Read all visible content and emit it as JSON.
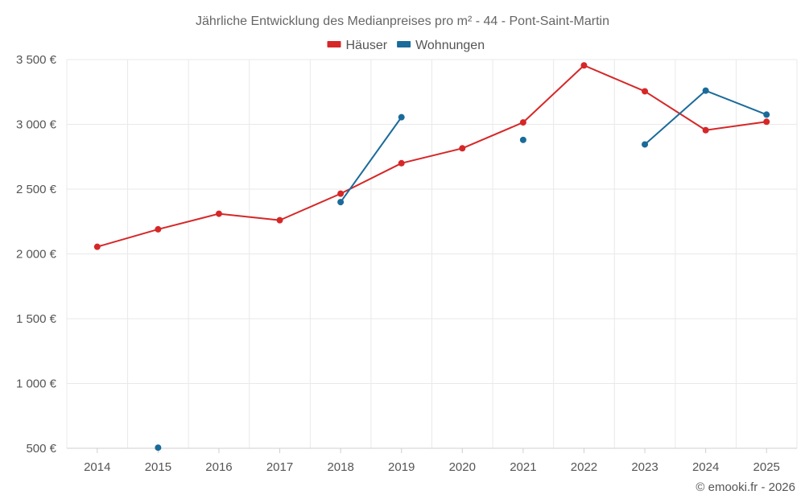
{
  "chart_data": {
    "type": "line",
    "title": "Jährliche Entwicklung des Medianpreises pro m² - 44 - Pont-Saint-Martin",
    "categories": [
      "2014",
      "2015",
      "2016",
      "2017",
      "2018",
      "2019",
      "2020",
      "2021",
      "2022",
      "2023",
      "2024",
      "2025"
    ],
    "y_ticks": [
      500,
      1000,
      1500,
      2000,
      2500,
      3000,
      3500
    ],
    "y_tick_labels": [
      "500 €",
      "1 000 €",
      "1 500 €",
      "2 000 €",
      "2 500 €",
      "3 000 €",
      "3 500 €"
    ],
    "ylim": [
      500,
      3500
    ],
    "grid": true,
    "legend_position": "top-center",
    "series": [
      {
        "name": "Häuser",
        "color": "#d62728",
        "values": [
          2055,
          2190,
          2310,
          2260,
          2465,
          2700,
          2815,
          3015,
          3455,
          3255,
          2955,
          3020
        ]
      },
      {
        "name": "Wohnungen",
        "color": "#1a6b9a",
        "values": [
          null,
          505,
          null,
          null,
          2400,
          3055,
          null,
          2880,
          null,
          2845,
          3260,
          3075
        ]
      }
    ],
    "credit": "© emooki.fr - 2026"
  }
}
